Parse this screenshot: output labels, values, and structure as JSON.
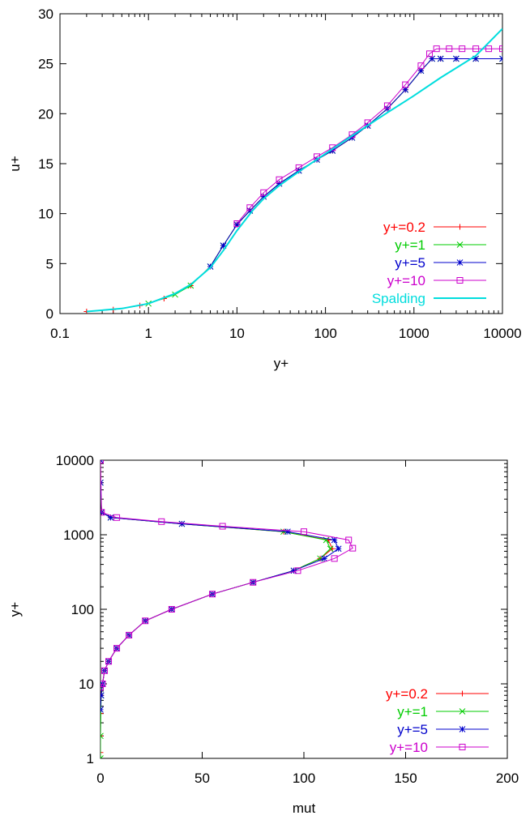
{
  "chart_data": [
    {
      "type": "line",
      "xlabel": "y+",
      "ylabel": "u+",
      "xscale": "log",
      "xlim": [
        0.1,
        10000
      ],
      "ylim": [
        0,
        30
      ],
      "xticks": [
        0.1,
        1,
        10,
        100,
        1000,
        10000
      ],
      "xtick_labels": [
        "0.1",
        "1",
        "10",
        "100",
        "1000",
        "10000"
      ],
      "yticks": [
        0,
        5,
        10,
        15,
        20,
        25,
        30
      ],
      "ytick_labels": [
        "0",
        "5",
        "10",
        "15",
        "20",
        "25",
        "30"
      ],
      "grid": false,
      "legend": "bottom-right",
      "series": [
        {
          "name": "y+=0.2",
          "color": "#ff0000",
          "marker": "plus",
          "x": [
            0.2,
            0.4,
            0.8,
            1.5,
            3,
            5,
            7,
            10,
            14,
            20,
            30,
            50,
            80,
            120,
            200,
            300,
            500,
            800,
            1200,
            1600,
            2000,
            3000,
            5000,
            10000
          ],
          "y": [
            0.2,
            0.4,
            0.8,
            1.5,
            2.8,
            4.7,
            6.8,
            8.9,
            10.3,
            11.7,
            13.0,
            14.3,
            15.4,
            16.3,
            17.6,
            18.8,
            20.5,
            22.4,
            24.3,
            25.5,
            25.5,
            25.5,
            25.5,
            25.5
          ]
        },
        {
          "name": "y+=1",
          "color": "#00cc00",
          "marker": "x",
          "x": [
            1,
            2,
            3,
            5,
            7,
            10,
            14,
            20,
            30,
            50,
            80,
            120,
            200,
            300,
            500,
            800,
            1200,
            1600,
            2000,
            3000,
            5000,
            10000
          ],
          "y": [
            1.0,
            1.9,
            2.8,
            4.7,
            6.8,
            8.9,
            10.3,
            11.7,
            13.0,
            14.3,
            15.4,
            16.3,
            17.6,
            18.8,
            20.5,
            22.4,
            24.3,
            25.5,
            25.5,
            25.5,
            25.5,
            25.5
          ]
        },
        {
          "name": "y+=5",
          "color": "#0000cc",
          "marker": "star",
          "x": [
            5,
            7,
            10,
            14,
            20,
            30,
            50,
            80,
            120,
            200,
            300,
            500,
            800,
            1200,
            1600,
            2000,
            3000,
            5000,
            10000
          ],
          "y": [
            4.7,
            6.8,
            8.9,
            10.3,
            11.7,
            13.0,
            14.3,
            15.4,
            16.3,
            17.6,
            18.8,
            20.5,
            22.4,
            24.3,
            25.5,
            25.5,
            25.5,
            25.5,
            25.5
          ]
        },
        {
          "name": "y+=10",
          "color": "#cc00cc",
          "marker": "square",
          "x": [
            10,
            14,
            20,
            30,
            50,
            80,
            120,
            200,
            300,
            500,
            800,
            1200,
            1500,
            1800,
            2500,
            3500,
            5000,
            7000,
            10000
          ],
          "y": [
            9.0,
            10.6,
            12.1,
            13.4,
            14.6,
            15.7,
            16.6,
            17.9,
            19.1,
            20.8,
            22.9,
            24.8,
            26.0,
            26.5,
            26.5,
            26.5,
            26.5,
            26.5,
            26.5
          ]
        },
        {
          "name": "Spalding",
          "color": "#00dddd",
          "marker": "none",
          "x": [
            0.2,
            0.5,
            1,
            2,
            3,
            5,
            7,
            10,
            15,
            20,
            30,
            50,
            100,
            200,
            500,
            1000,
            2000,
            5000,
            10000
          ],
          "y": [
            0.2,
            0.5,
            1.0,
            2.0,
            2.9,
            4.6,
            6.3,
            8.3,
            10.3,
            11.5,
            12.8,
            14.2,
            16.0,
            17.8,
            20.1,
            21.8,
            23.6,
            25.8,
            28.5
          ]
        }
      ]
    },
    {
      "type": "line",
      "xlabel": "mut",
      "ylabel": "y+",
      "yscale": "log",
      "xlim": [
        0,
        200
      ],
      "ylim": [
        1,
        10000
      ],
      "xticks": [
        0,
        50,
        100,
        150,
        200
      ],
      "xtick_labels": [
        "0",
        "50",
        "100",
        "150",
        "200"
      ],
      "yticks": [
        1,
        10,
        100,
        1000,
        10000
      ],
      "ytick_labels": [
        "1",
        "10",
        "100",
        "1000",
        "10000"
      ],
      "grid": false,
      "legend": "bottom-right",
      "series": [
        {
          "name": "y+=0.2",
          "color": "#ff0000",
          "marker": "plus",
          "x": [
            0,
            0,
            0,
            0.3,
            1,
            2,
            4,
            8,
            14,
            22,
            35,
            55,
            75,
            95,
            108,
            114,
            112,
            90,
            40,
            5,
            0.5,
            0,
            0
          ],
          "y": [
            1.2,
            2,
            4,
            7,
            10,
            15,
            20,
            30,
            45,
            70,
            100,
            160,
            230,
            330,
            480,
            650,
            850,
            1100,
            1400,
            1700,
            2000,
            5000,
            10000
          ]
        },
        {
          "name": "y+=1",
          "color": "#00cc00",
          "marker": "x",
          "x": [
            0,
            0,
            0.3,
            1,
            2,
            4,
            8,
            14,
            22,
            35,
            55,
            75,
            95,
            108,
            113,
            111,
            90,
            40,
            5,
            0.5,
            0,
            0
          ],
          "y": [
            1,
            2,
            7,
            10,
            15,
            20,
            30,
            45,
            70,
            100,
            160,
            230,
            330,
            480,
            650,
            850,
            1100,
            1400,
            1700,
            2000,
            5000,
            10000
          ]
        },
        {
          "name": "y+=5",
          "color": "#0000cc",
          "marker": "star",
          "x": [
            0,
            0.3,
            1,
            2,
            4,
            8,
            14,
            22,
            35,
            55,
            75,
            95,
            110,
            117,
            115,
            92,
            40,
            5,
            0.5,
            0,
            0
          ],
          "y": [
            4.5,
            7,
            10,
            15,
            20,
            30,
            45,
            70,
            100,
            160,
            230,
            330,
            480,
            650,
            850,
            1100,
            1400,
            1700,
            2000,
            5000,
            10000
          ]
        },
        {
          "name": "y+=10",
          "color": "#cc00cc",
          "marker": "square",
          "x": [
            0,
            1,
            2,
            4,
            8,
            14,
            22,
            35,
            55,
            75,
            97,
            115,
            124,
            122,
            100,
            60,
            30,
            8,
            0.5,
            0
          ],
          "y": [
            9,
            10,
            15,
            20,
            30,
            45,
            70,
            100,
            160,
            230,
            330,
            480,
            660,
            850,
            1100,
            1300,
            1500,
            1700,
            2000,
            10000
          ]
        }
      ]
    }
  ]
}
